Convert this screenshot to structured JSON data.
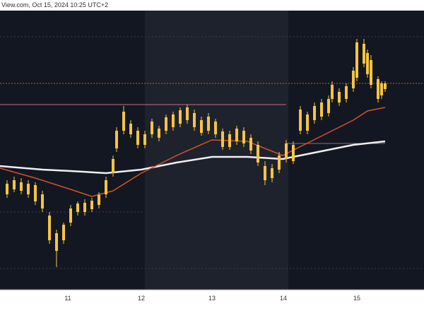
{
  "header": {
    "source": "View.com, Oct 15, 2024 10:25 UTC+2"
  },
  "x_axis": {
    "labels": [
      "11",
      "12",
      "13",
      "14",
      "15"
    ]
  }
}
